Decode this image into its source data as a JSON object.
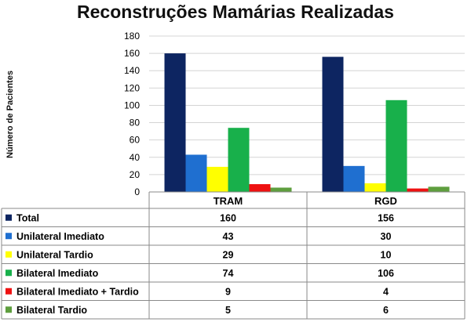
{
  "chart_data": {
    "type": "bar",
    "title": "Reconstruções Mamárias Realizadas",
    "ylabel": "Número de Pacientes",
    "xlabel": "",
    "ylim": [
      0,
      180
    ],
    "yticks": [
      0,
      20,
      40,
      60,
      80,
      100,
      120,
      140,
      160,
      180
    ],
    "grid": true,
    "categories": [
      "TRAM",
      "RGD"
    ],
    "series": [
      {
        "name": "Total",
        "color": "#0d2561",
        "values": [
          160,
          156
        ]
      },
      {
        "name": "Unilateral Imediato",
        "color": "#1f6fd0",
        "values": [
          43,
          30
        ]
      },
      {
        "name": "Unilateral Tardio",
        "color": "#ffff00",
        "values": [
          29,
          10
        ]
      },
      {
        "name": "Bilateral Imediato",
        "color": "#18b04b",
        "values": [
          74,
          106
        ]
      },
      {
        "name": "Bilateral Imediato + Tardio",
        "color": "#ee1111",
        "values": [
          9,
          4
        ]
      },
      {
        "name": "Bilateral Tardio",
        "color": "#5e9e3e",
        "values": [
          5,
          6
        ]
      }
    ],
    "legend_placement": "data-table-below"
  }
}
